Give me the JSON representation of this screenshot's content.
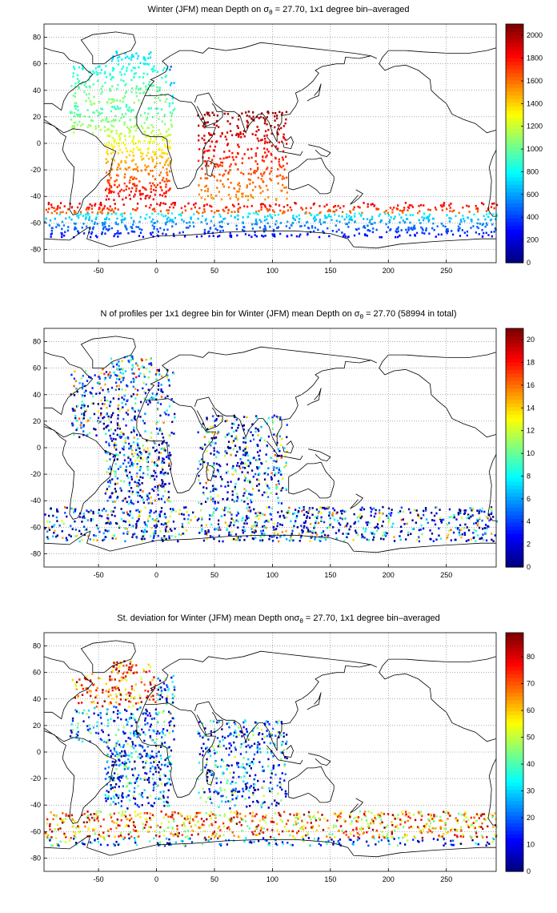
{
  "panels": [
    {
      "title_pre": "Winter (JFM) mean Depth on σ",
      "title_sub": "θ",
      "title_post": " = 27.70, 1x1 degree bin–averaged",
      "colorbar": {
        "ticks": [
          "0",
          "200",
          "400",
          "600",
          "800",
          "1000",
          "1200",
          "1400",
          "1600",
          "1800",
          "2000"
        ],
        "min": 0,
        "max": 2100
      }
    },
    {
      "title_pre": "N of profiles per 1x1 degree bin for Winter (JFM) mean Depth on σ",
      "title_sub": "θ",
      "title_post": " = 27.70 (58994 in total)",
      "colorbar": {
        "ticks": [
          "0",
          "2",
          "4",
          "6",
          "8",
          "10",
          "12",
          "14",
          "16",
          "18",
          "20"
        ],
        "min": 0,
        "max": 21
      }
    },
    {
      "title_pre": "St. deviation for Winter (JFM) mean Depth onσ",
      "title_sub": "θ",
      "title_post": " = 27.70, 1x1 degree bin–averaged",
      "colorbar": {
        "ticks": [
          "0",
          "10",
          "20",
          "30",
          "40",
          "50",
          "60",
          "70",
          "80"
        ],
        "min": 0,
        "max": 89
      }
    }
  ],
  "axes": {
    "x_ticks": [
      "-50",
      "0",
      "50",
      "100",
      "150",
      "200",
      "250"
    ],
    "x_values": [
      -50,
      0,
      50,
      100,
      150,
      200,
      250
    ],
    "y_ticks": [
      "80",
      "60",
      "40",
      "20",
      "0",
      "-20",
      "-40",
      "-60",
      "-80"
    ],
    "y_values": [
      80,
      60,
      40,
      20,
      0,
      -20,
      -40,
      -60,
      -80
    ],
    "lon_range": [
      -97,
      293
    ],
    "lat_range": [
      -90,
      90
    ]
  },
  "colors": {
    "colormap": "jet",
    "land_outline": "#000000",
    "grid": "#555555"
  }
}
